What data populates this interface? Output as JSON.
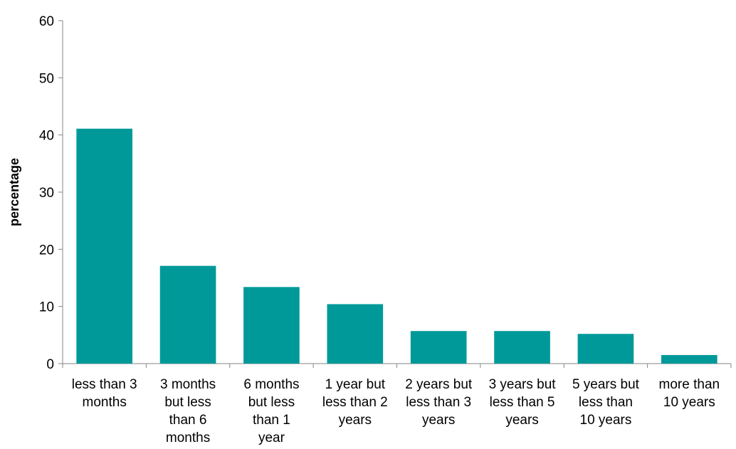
{
  "chart_data": {
    "type": "bar",
    "title": "",
    "xlabel": "",
    "ylabel": "percentage",
    "ylim": [
      0,
      60
    ],
    "yticks": [
      0,
      10,
      20,
      30,
      40,
      50,
      60
    ],
    "grid": false,
    "legend": "none",
    "bar_color": "#009999",
    "categories": [
      [
        "less than 3",
        "months"
      ],
      [
        "3 months",
        "but less",
        "than 6",
        "months"
      ],
      [
        "6 months",
        "but less",
        "than 1",
        "year"
      ],
      [
        "1 year but",
        "less than 2",
        "years"
      ],
      [
        "2 years but",
        "less than 3",
        "years"
      ],
      [
        "3 years but",
        "less than 5",
        "years"
      ],
      [
        "5 years but",
        "less than",
        "10 years"
      ],
      [
        "more than",
        "10 years"
      ]
    ],
    "values": [
      41.1,
      17.1,
      13.4,
      10.4,
      5.7,
      5.7,
      5.2,
      1.5
    ]
  }
}
